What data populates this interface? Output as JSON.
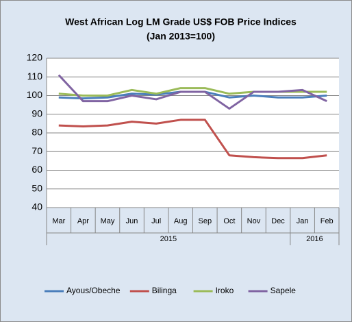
{
  "chart_data": {
    "type": "line",
    "title": "West African Log LM Grade US$ FOB Price Indices",
    "subtitle": "(Jan 2013=100)",
    "categories": [
      "Mar",
      "Apr",
      "May",
      "Jun",
      "Jul",
      "Aug",
      "Sep",
      "Oct",
      "Nov",
      "Dec",
      "Jan",
      "Feb"
    ],
    "category_groups": [
      {
        "label": "2015",
        "span": 10
      },
      {
        "label": "2016",
        "span": 2
      }
    ],
    "series": [
      {
        "name": "Ayous/Obeche",
        "color": "#4a7ebb",
        "values": [
          99,
          98.5,
          99,
          101,
          100.5,
          102,
          102,
          99,
          100,
          99,
          99,
          100
        ]
      },
      {
        "name": "Bilinga",
        "color": "#c0504d",
        "values": [
          84,
          83.5,
          84,
          86,
          85,
          87,
          87,
          68,
          67,
          66.5,
          66.5,
          68
        ]
      },
      {
        "name": "Iroko",
        "color": "#9bbb59",
        "values": [
          101,
          100,
          100,
          103,
          101,
          104,
          104,
          101,
          102,
          102,
          102,
          102
        ]
      },
      {
        "name": "Sapele",
        "color": "#8064a2",
        "values": [
          111,
          97,
          97,
          100,
          98,
          102,
          102,
          93,
          102,
          102,
          103,
          97
        ]
      }
    ],
    "ylim": [
      40,
      120
    ],
    "yticks": [
      40,
      50,
      60,
      70,
      80,
      90,
      100,
      110,
      120
    ],
    "grid": true,
    "legend": "bottom"
  }
}
